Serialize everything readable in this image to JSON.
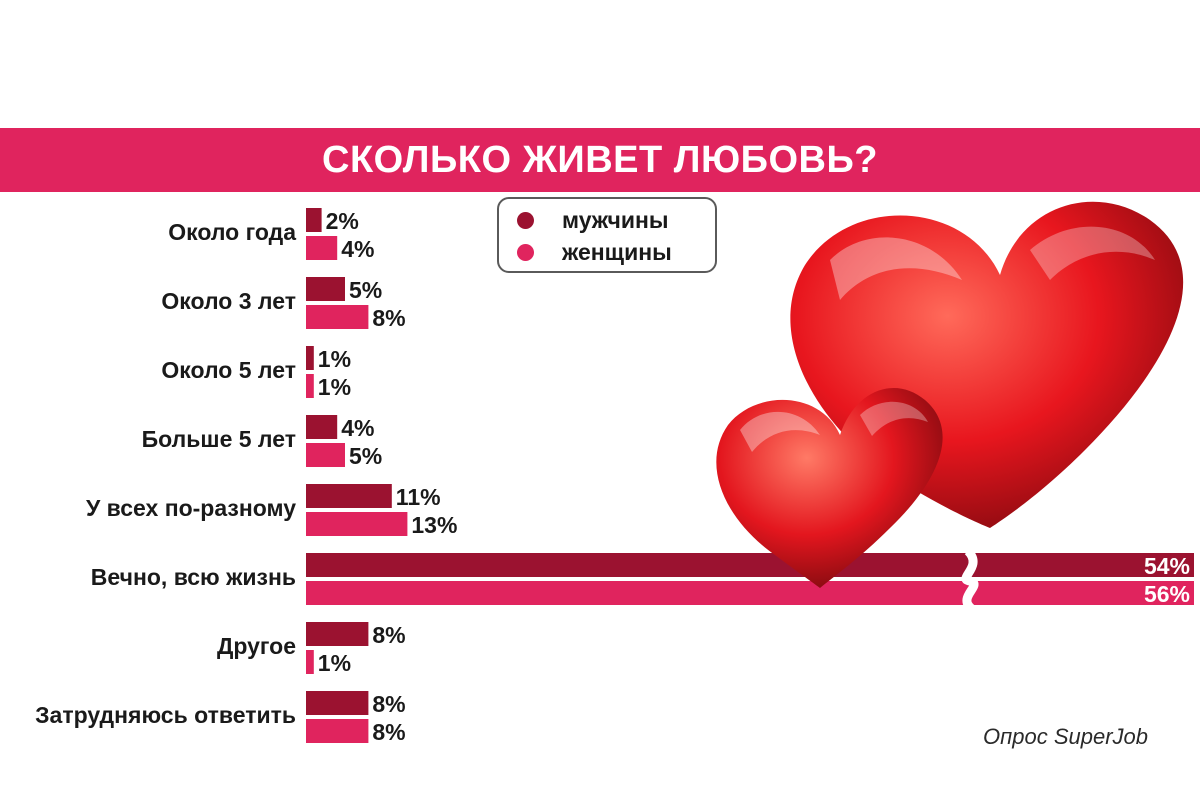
{
  "title": "СКОЛЬКО ЖИВЕТ ЛЮБОВЬ?",
  "source": "Опрос SuperJob",
  "colors": {
    "men": "#9b1230",
    "women": "#e0245e",
    "title_bg": "#e0245e",
    "heart": "#e8161e"
  },
  "chart_data": {
    "type": "bar",
    "orientation": "horizontal",
    "title": "СКОЛЬКО ЖИВЕТ ЛЮБОВЬ?",
    "categories": [
      "Около года",
      "Около 3 лет",
      "Около 5 лет",
      "Больше 5 лет",
      "У всех по-разному",
      "Вечно, всю жизнь",
      "Другое",
      "Затрудняюсь ответить"
    ],
    "series": [
      {
        "name": "мужчины",
        "values": [
          2,
          5,
          1,
          4,
          11,
          54,
          8,
          8
        ],
        "labels": [
          "2%",
          "5%",
          "1%",
          "4%",
          "11%",
          "54%",
          "8%",
          "8%"
        ]
      },
      {
        "name": "женщины",
        "values": [
          4,
          8,
          1,
          5,
          13,
          56,
          1,
          8
        ],
        "labels": [
          "4%",
          "8%",
          "1%",
          "5%",
          "13%",
          "56%",
          "1%",
          "8%"
        ]
      }
    ],
    "axis_break": true,
    "legend_position": "top-center"
  }
}
